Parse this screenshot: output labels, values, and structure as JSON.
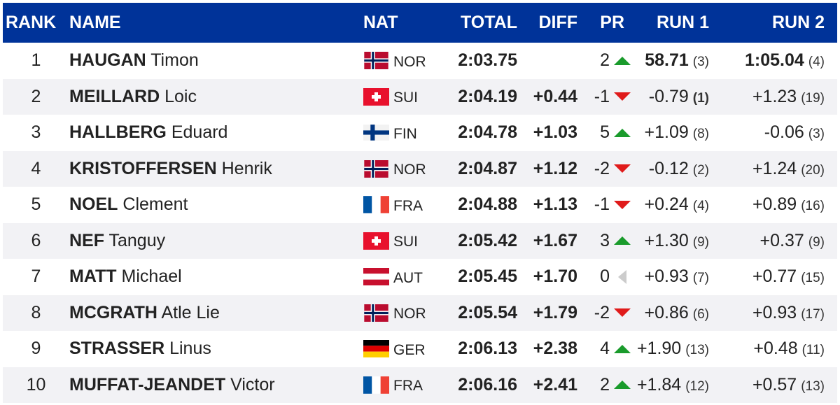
{
  "headers": {
    "rank": "RANK",
    "name": "NAME",
    "nat": "NAT",
    "total": "TOTAL",
    "diff": "DIFF",
    "pr": "PR",
    "run1": "RUN 1",
    "run2": "RUN 2"
  },
  "rows": [
    {
      "rank": "1",
      "surname": "HAUGAN",
      "first": "Timon",
      "nat": "NOR",
      "total": "2:03.75",
      "diff": "",
      "pr": "2",
      "trend": "up",
      "run1": "58.71",
      "run1_rank": "(3)",
      "run2": "1:05.04",
      "run2_rank": "(4)"
    },
    {
      "rank": "2",
      "surname": "MEILLARD",
      "first": "Loic",
      "nat": "SUI",
      "total": "2:04.19",
      "diff": "+0.44",
      "pr": "-1",
      "trend": "down",
      "run1": "-0.79",
      "run1_rank": "(1)",
      "run2": "+1.23",
      "run2_rank": "(19)"
    },
    {
      "rank": "3",
      "surname": "HALLBERG",
      "first": "Eduard",
      "nat": "FIN",
      "total": "2:04.78",
      "diff": "+1.03",
      "pr": "5",
      "trend": "up",
      "run1": "+1.09",
      "run1_rank": "(8)",
      "run2": "-0.06",
      "run2_rank": "(3)"
    },
    {
      "rank": "4",
      "surname": "KRISTOFFERSEN",
      "first": "Henrik",
      "nat": "NOR",
      "total": "2:04.87",
      "diff": "+1.12",
      "pr": "-2",
      "trend": "down",
      "run1": "-0.12",
      "run1_rank": "(2)",
      "run2": "+1.24",
      "run2_rank": "(20)"
    },
    {
      "rank": "5",
      "surname": "NOEL",
      "first": "Clement",
      "nat": "FRA",
      "total": "2:04.88",
      "diff": "+1.13",
      "pr": "-1",
      "trend": "down",
      "run1": "+0.24",
      "run1_rank": "(4)",
      "run2": "+0.89",
      "run2_rank": "(16)"
    },
    {
      "rank": "6",
      "surname": "NEF",
      "first": "Tanguy",
      "nat": "SUI",
      "total": "2:05.42",
      "diff": "+1.67",
      "pr": "3",
      "trend": "up",
      "run1": "+1.30",
      "run1_rank": "(9)",
      "run2": "+0.37",
      "run2_rank": "(9)"
    },
    {
      "rank": "7",
      "surname": "MATT",
      "first": "Michael",
      "nat": "AUT",
      "total": "2:05.45",
      "diff": "+1.70",
      "pr": "0",
      "trend": "same",
      "run1": "+0.93",
      "run1_rank": "(7)",
      "run2": "+0.77",
      "run2_rank": "(15)"
    },
    {
      "rank": "8",
      "surname": "MCGRATH",
      "first": "Atle Lie",
      "nat": "NOR",
      "total": "2:05.54",
      "diff": "+1.79",
      "pr": "-2",
      "trend": "down",
      "run1": "+0.86",
      "run1_rank": "(6)",
      "run2": "+0.93",
      "run2_rank": "(17)"
    },
    {
      "rank": "9",
      "surname": "STRASSER",
      "first": "Linus",
      "nat": "GER",
      "total": "2:06.13",
      "diff": "+2.38",
      "pr": "4",
      "trend": "up",
      "run1": "+1.90",
      "run1_rank": "(13)",
      "run2": "+0.48",
      "run2_rank": "(11)"
    },
    {
      "rank": "10",
      "surname": "MUFFAT-JEANDET",
      "first": "Victor",
      "nat": "FRA",
      "total": "2:06.16",
      "diff": "+2.41",
      "pr": "2",
      "trend": "up",
      "run1": "+1.84",
      "run1_rank": "(12)",
      "run2": "+0.57",
      "run2_rank": "(13)"
    }
  ],
  "colors": {
    "header_bg": "#003399",
    "trend_up": "#1a9b2c",
    "trend_down": "#e01b1b",
    "trend_same": "#cccccc"
  }
}
